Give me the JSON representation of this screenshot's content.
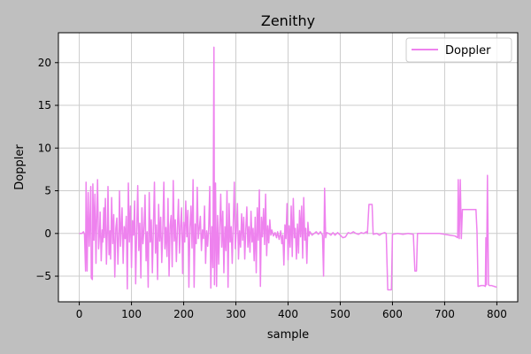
{
  "chart_data": {
    "type": "line",
    "title": "Zenithy",
    "xlabel": "sample",
    "ylabel": "Doppler",
    "xlim": [
      -40,
      840
    ],
    "ylim": [
      -8,
      23.5
    ],
    "xticks": [
      0,
      100,
      200,
      300,
      400,
      500,
      600,
      700,
      800
    ],
    "yticks": [
      -5,
      0,
      5,
      10,
      15,
      20
    ],
    "grid": true,
    "legend_position": "top-right",
    "colors": {
      "background": "#bfbfbf",
      "plot_area": "#ffffff",
      "series": "#ee82ee",
      "grid": "#cccccc"
    },
    "series": [
      {
        "name": "Doppler",
        "color": "#ee82ee",
        "points": [
          [
            0,
            0
          ],
          [
            5,
            0
          ],
          [
            8,
            0.2
          ],
          [
            10,
            -0.1
          ],
          [
            12,
            -4.4
          ],
          [
            13,
            6.0
          ],
          [
            15,
            -4.4
          ],
          [
            17,
            4.8
          ],
          [
            19,
            -1.5
          ],
          [
            20,
            0.5
          ],
          [
            22,
            5.5
          ],
          [
            23,
            -5.2
          ],
          [
            25,
            -5.4
          ],
          [
            26,
            5.8
          ],
          [
            28,
            -0.8
          ],
          [
            30,
            4.6
          ],
          [
            32,
            -3.5
          ],
          [
            33,
            0.5
          ],
          [
            35,
            6.3
          ],
          [
            37,
            -1.8
          ],
          [
            39,
            0.2
          ],
          [
            40,
            2.5
          ],
          [
            42,
            -3.2
          ],
          [
            44,
            0.4
          ],
          [
            45,
            -1.0
          ],
          [
            47,
            3.0
          ],
          [
            48,
            -0.5
          ],
          [
            50,
            4.1
          ],
          [
            52,
            -3.6
          ],
          [
            54,
            1.0
          ],
          [
            55,
            5.5
          ],
          [
            57,
            -2.5
          ],
          [
            59,
            0.3
          ],
          [
            60,
            -3.0
          ],
          [
            62,
            4.2
          ],
          [
            64,
            -1.2
          ],
          [
            66,
            2.2
          ],
          [
            68,
            -5.1
          ],
          [
            70,
            0.6
          ],
          [
            72,
            1.8
          ],
          [
            74,
            -3.6
          ],
          [
            76,
            0.5
          ],
          [
            77,
            5.0
          ],
          [
            79,
            -1.5
          ],
          [
            80,
            0.2
          ],
          [
            82,
            3.0
          ],
          [
            84,
            -3.5
          ],
          [
            86,
            0.8
          ],
          [
            88,
            -0.6
          ],
          [
            90,
            2.0
          ],
          [
            92,
            -6.5
          ],
          [
            94,
            5.9
          ],
          [
            96,
            -1.0
          ],
          [
            98,
            3.2
          ],
          [
            100,
            -4.0
          ],
          [
            102,
            1.5
          ],
          [
            104,
            -0.2
          ],
          [
            106,
            3.8
          ],
          [
            108,
            -5.9
          ],
          [
            110,
            0.4
          ],
          [
            112,
            5.6
          ],
          [
            114,
            -2.0
          ],
          [
            116,
            1.2
          ],
          [
            118,
            -5.2
          ],
          [
            120,
            3.0
          ],
          [
            122,
            -1.2
          ],
          [
            124,
            0.5
          ],
          [
            126,
            4.5
          ],
          [
            128,
            -3.2
          ],
          [
            130,
            0.2
          ],
          [
            132,
            -6.3
          ],
          [
            134,
            4.8
          ],
          [
            136,
            -1.0
          ],
          [
            138,
            1.6
          ],
          [
            140,
            -4.6
          ],
          [
            142,
            0.8
          ],
          [
            144,
            6.0
          ],
          [
            146,
            -2.3
          ],
          [
            148,
            1.0
          ],
          [
            150,
            -5.4
          ],
          [
            152,
            3.4
          ],
          [
            154,
            -0.9
          ],
          [
            156,
            1.9
          ],
          [
            158,
            -3.4
          ],
          [
            160,
            0.4
          ],
          [
            162,
            6.0
          ],
          [
            164,
            -1.8
          ],
          [
            166,
            0.7
          ],
          [
            168,
            -2.7
          ],
          [
            170,
            4.1
          ],
          [
            172,
            -5.0
          ],
          [
            174,
            0.9
          ],
          [
            176,
            2.1
          ],
          [
            178,
            -3.9
          ],
          [
            180,
            6.2
          ],
          [
            182,
            -0.9
          ],
          [
            184,
            1.6
          ],
          [
            186,
            -3.3
          ],
          [
            188,
            0.6
          ],
          [
            190,
            4.0
          ],
          [
            192,
            -2.3
          ],
          [
            194,
            0.9
          ],
          [
            196,
            3.0
          ],
          [
            198,
            -4.7
          ],
          [
            200,
            1.3
          ],
          [
            202,
            -1.0
          ],
          [
            204,
            3.8
          ],
          [
            206,
            -0.4
          ],
          [
            208,
            2.7
          ],
          [
            210,
            -6.3
          ],
          [
            212,
            0.7
          ],
          [
            214,
            3.2
          ],
          [
            216,
            -1.7
          ],
          [
            218,
            6.3
          ],
          [
            220,
            -6.3
          ],
          [
            222,
            1.1
          ],
          [
            224,
            -1.2
          ],
          [
            226,
            5.4
          ],
          [
            228,
            -0.6
          ],
          [
            230,
            0.6
          ],
          [
            232,
            2.0
          ],
          [
            234,
            -2.0
          ],
          [
            236,
            0.4
          ],
          [
            238,
            -0.6
          ],
          [
            240,
            3.2
          ],
          [
            242,
            -3.5
          ],
          [
            244,
            0.3
          ],
          [
            246,
            -1.5
          ],
          [
            248,
            0.8
          ],
          [
            250,
            5.5
          ],
          [
            252,
            -6.4
          ],
          [
            254,
            0.8
          ],
          [
            256,
            -4.0
          ],
          [
            258,
            21.8
          ],
          [
            259,
            -6.0
          ],
          [
            261,
            5.9
          ],
          [
            263,
            -6.2
          ],
          [
            265,
            2.1
          ],
          [
            267,
            -3.6
          ],
          [
            269,
            0.6
          ],
          [
            271,
            4.6
          ],
          [
            273,
            -1.6
          ],
          [
            275,
            2.6
          ],
          [
            277,
            -4.6
          ],
          [
            279,
            0.8
          ],
          [
            281,
            -2.0
          ],
          [
            283,
            5.0
          ],
          [
            285,
            -6.3
          ],
          [
            287,
            3.5
          ],
          [
            289,
            -1.0
          ],
          [
            291,
            0.8
          ],
          [
            293,
            -3.5
          ],
          [
            295,
            1.1
          ],
          [
            297,
            6.0
          ],
          [
            299,
            -1.8
          ],
          [
            301,
            0.5
          ],
          [
            303,
            3.5
          ],
          [
            305,
            -3.0
          ],
          [
            307,
            0.3
          ],
          [
            309,
            -1.6
          ],
          [
            311,
            2.3
          ],
          [
            313,
            -0.8
          ],
          [
            315,
            1.9
          ],
          [
            317,
            -3.0
          ],
          [
            319,
            0.4
          ],
          [
            321,
            3.1
          ],
          [
            323,
            -1.6
          ],
          [
            325,
            0.8
          ],
          [
            327,
            -2.2
          ],
          [
            329,
            2.6
          ],
          [
            331,
            -1.0
          ],
          [
            333,
            0.6
          ],
          [
            335,
            -3.2
          ],
          [
            337,
            1.9
          ],
          [
            339,
            -4.6
          ],
          [
            341,
            3.0
          ],
          [
            343,
            -0.8
          ],
          [
            345,
            5.1
          ],
          [
            347,
            -6.2
          ],
          [
            349,
            1.9
          ],
          [
            351,
            -0.4
          ],
          [
            353,
            2.9
          ],
          [
            355,
            -1.3
          ],
          [
            357,
            4.6
          ],
          [
            359,
            -2.6
          ],
          [
            361,
            0.9
          ],
          [
            363,
            -1.1
          ],
          [
            365,
            1.6
          ],
          [
            367,
            -0.2
          ],
          [
            369,
            0.4
          ],
          [
            372,
            -0.3
          ],
          [
            375,
            0.1
          ],
          [
            378,
            -0.5
          ],
          [
            380,
            0.2
          ],
          [
            383,
            -0.7
          ],
          [
            386,
            0.3
          ],
          [
            388,
            -1.2
          ],
          [
            390,
            -0.2
          ],
          [
            392,
            -3.7
          ],
          [
            394,
            1.0
          ],
          [
            396,
            -0.6
          ],
          [
            398,
            3.5
          ],
          [
            400,
            -3.1
          ],
          [
            402,
            0.9
          ],
          [
            404,
            -1.6
          ],
          [
            406,
            3.2
          ],
          [
            408,
            -2.7
          ],
          [
            410,
            4.1
          ],
          [
            412,
            -0.5
          ],
          [
            414,
            0.6
          ],
          [
            416,
            -3.0
          ],
          [
            418,
            1.1
          ],
          [
            420,
            -2.3
          ],
          [
            422,
            2.7
          ],
          [
            424,
            -0.4
          ],
          [
            426,
            3.2
          ],
          [
            428,
            -2.9
          ],
          [
            430,
            4.2
          ],
          [
            432,
            -0.8
          ],
          [
            434,
            0.6
          ],
          [
            436,
            -3.5
          ],
          [
            438,
            1.3
          ],
          [
            440,
            -0.3
          ],
          [
            442,
            0.2
          ],
          [
            446,
            -0.2
          ],
          [
            450,
            0.0
          ],
          [
            454,
            0.2
          ],
          [
            458,
            -0.1
          ],
          [
            462,
            0.2
          ],
          [
            466,
            -0.2
          ],
          [
            468,
            -5.0
          ],
          [
            470,
            5.3
          ],
          [
            472,
            -0.5
          ],
          [
            474,
            0.1
          ],
          [
            478,
            0.0
          ],
          [
            482,
            -0.2
          ],
          [
            486,
            0.1
          ],
          [
            490,
            -0.2
          ],
          [
            495,
            0.1
          ],
          [
            500,
            -0.2
          ],
          [
            505,
            -0.5
          ],
          [
            510,
            -0.4
          ],
          [
            515,
            0.1
          ],
          [
            520,
            0.0
          ],
          [
            525,
            0.2
          ],
          [
            530,
            0.0
          ],
          [
            535,
            -0.1
          ],
          [
            540,
            0.1
          ],
          [
            545,
            0.0
          ],
          [
            550,
            0.2
          ],
          [
            552,
            0.0
          ],
          [
            555,
            3.4
          ],
          [
            561,
            3.4
          ],
          [
            563,
            -0.1
          ],
          [
            570,
            0.0
          ],
          [
            575,
            -0.2
          ],
          [
            580,
            0.0
          ],
          [
            585,
            0.1
          ],
          [
            588,
            0.0
          ],
          [
            591,
            -6.6
          ],
          [
            595,
            -6.6
          ],
          [
            598,
            -6.6
          ],
          [
            600,
            -0.1
          ],
          [
            610,
            0.0
          ],
          [
            620,
            -0.1
          ],
          [
            630,
            0.0
          ],
          [
            640,
            -0.1
          ],
          [
            643,
            -4.4
          ],
          [
            646,
            -4.4
          ],
          [
            648,
            0.0
          ],
          [
            660,
            0.0
          ],
          [
            670,
            0.0
          ],
          [
            680,
            0.0
          ],
          [
            690,
            0.0
          ],
          [
            700,
            -0.1
          ],
          [
            710,
            -0.2
          ],
          [
            720,
            -0.3
          ],
          [
            725,
            -0.5
          ],
          [
            726,
            6.3
          ],
          [
            728,
            -0.6
          ],
          [
            730,
            6.3
          ],
          [
            732,
            -0.6
          ],
          [
            734,
            2.8
          ],
          [
            740,
            2.8
          ],
          [
            745,
            2.8
          ],
          [
            750,
            2.8
          ],
          [
            755,
            2.8
          ],
          [
            760,
            2.8
          ],
          [
            762,
            0.2
          ],
          [
            764,
            -6.2
          ],
          [
            770,
            -6.1
          ],
          [
            775,
            -6.1
          ],
          [
            778,
            -6.2
          ],
          [
            779,
            -0.5
          ],
          [
            780,
            -6.0
          ],
          [
            782,
            6.8
          ],
          [
            784,
            -6.0
          ],
          [
            786,
            -6.1
          ],
          [
            790,
            -6.1
          ],
          [
            795,
            -6.2
          ],
          [
            800,
            -6.3
          ]
        ]
      }
    ]
  }
}
